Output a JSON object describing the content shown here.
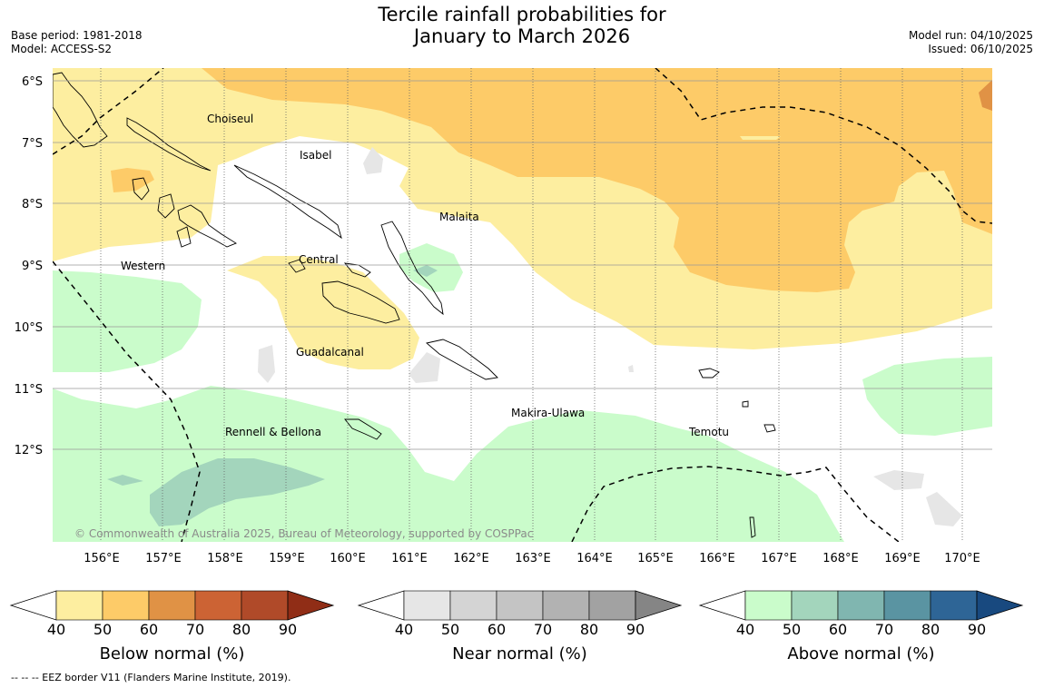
{
  "title": {
    "line1": "Tercile rainfall probabilities for",
    "line2": "January to March 2026"
  },
  "meta": {
    "base_period": "Base period: 1981-2018",
    "model": "Model: ACCESS-S2",
    "model_run": "Model run: 04/10/2025",
    "issued": "Issued: 06/10/2025"
  },
  "map": {
    "lat_labels": [
      "6°S",
      "7°S",
      "8°S",
      "9°S",
      "10°S",
      "11°S",
      "12°S"
    ],
    "lon_labels": [
      "156°E",
      "157°E",
      "158°E",
      "159°E",
      "160°E",
      "161°E",
      "162°E",
      "163°E",
      "164°E",
      "165°E",
      "166°E",
      "167°E",
      "168°E",
      "169°E",
      "170°E"
    ],
    "regions": [
      "Choiseul",
      "Isabel",
      "Malaita",
      "Western",
      "Central",
      "Guadalcanal",
      "Makira-Ulawa",
      "Rennell & Bellona",
      "Temotu"
    ],
    "copyright": "© Commonwealth of Australia 2025, Bureau of Meteorology, supported by COSPPac",
    "colors": {
      "below_40": "#fdeea0",
      "below_50": "#fdcb68",
      "below_60": "#e09245",
      "near_40": "#e6e6e6",
      "above_40": "#cafccb",
      "above_50": "#a3d5bc",
      "land_outline": "#000000",
      "eez_border": "#000000"
    }
  },
  "colorbars": [
    {
      "caption": "Below normal (%)",
      "ticks": [
        "40",
        "50",
        "60",
        "70",
        "80",
        "90"
      ],
      "colors": [
        "#fdeea0",
        "#fdcb68",
        "#e09245",
        "#cc6334",
        "#b04a29",
        "#902d16"
      ]
    },
    {
      "caption": "Near normal (%)",
      "ticks": [
        "40",
        "50",
        "60",
        "70",
        "80",
        "90"
      ],
      "colors": [
        "#e6e6e6",
        "#d4d4d4",
        "#c4c4c4",
        "#b2b2b2",
        "#a2a2a2",
        "#858585"
      ]
    },
    {
      "caption": "Above normal (%)",
      "ticks": [
        "40",
        "50",
        "60",
        "70",
        "80",
        "90"
      ],
      "colors": [
        "#cafccb",
        "#a3d5bc",
        "#80b6b0",
        "#5a94a2",
        "#2e6596",
        "#18497f"
      ]
    }
  ],
  "footnote": "--  --  -- EEZ border V11 (Flanders Marine Institute, 2019)."
}
